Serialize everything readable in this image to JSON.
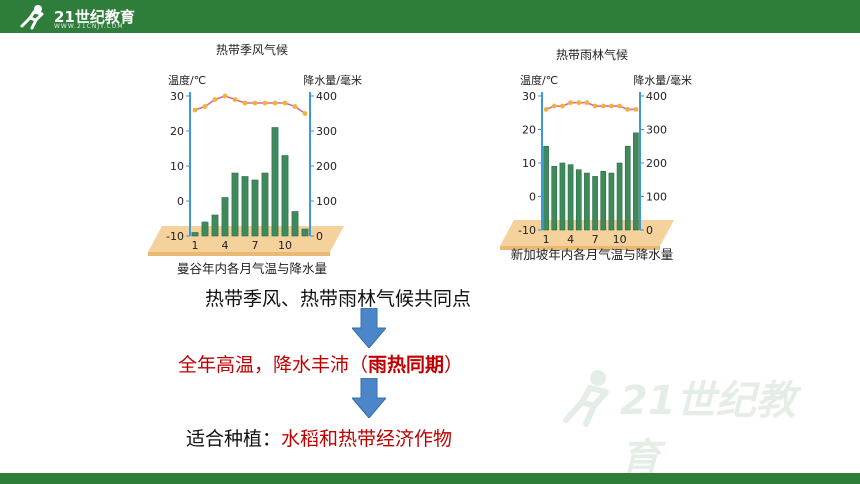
{
  "header": {
    "logo_text": "21世纪教育",
    "logo_sub": "WWW.21CNJY.COM"
  },
  "chart_data": [
    {
      "type": "bar",
      "title": "热带季风气候",
      "caption": "曼谷年内各月气温与降水量",
      "ylabel_left": "温度/℃",
      "ylabel_right": "降水量/毫米",
      "x_tick_labels": [
        "1",
        "4",
        "7",
        "10"
      ],
      "months": [
        1,
        2,
        3,
        4,
        5,
        6,
        7,
        8,
        9,
        10,
        11,
        12
      ],
      "precipitation": [
        10,
        40,
        60,
        110,
        180,
        170,
        160,
        180,
        310,
        230,
        70,
        20
      ],
      "temperature": [
        26,
        27,
        29,
        30,
        29,
        28,
        28,
        28,
        28,
        28,
        27,
        25
      ],
      "ylim_left": [
        -10,
        30
      ],
      "ylim_right": [
        0,
        400
      ],
      "yticks_left": [
        "30",
        "20",
        "10",
        "0",
        "-10"
      ],
      "yticks_right": [
        "400",
        "300",
        "200",
        "100",
        "0"
      ],
      "bar_color": "#3f8a5c",
      "line_color": "#d86a9a",
      "marker_color": "#f2b23a"
    },
    {
      "type": "bar",
      "title": "热带雨林气候",
      "caption": "新加坡年内各月气温与降水量",
      "ylabel_left": "温度/℃",
      "ylabel_right": "降水量/毫米",
      "x_tick_labels": [
        "1",
        "4",
        "7",
        "10"
      ],
      "months": [
        1,
        2,
        3,
        4,
        5,
        6,
        7,
        8,
        9,
        10,
        11,
        12
      ],
      "precipitation": [
        250,
        190,
        200,
        195,
        180,
        170,
        160,
        175,
        170,
        200,
        250,
        290
      ],
      "temperature": [
        26,
        27,
        27,
        28,
        28,
        28,
        27,
        27,
        27,
        27,
        26,
        26
      ],
      "ylim_left": [
        -10,
        30
      ],
      "ylim_right": [
        0,
        400
      ],
      "yticks_left": [
        "30",
        "20",
        "10",
        "0",
        "-10"
      ],
      "yticks_right": [
        "400",
        "300",
        "200",
        "100",
        "0"
      ],
      "bar_color": "#3f8a5c",
      "line_color": "#d86a9a",
      "marker_color": "#f2b23a"
    }
  ],
  "statements": {
    "common_point": "热带季风、热带雨林气候共同点",
    "feature_plain": "全年高温，降水丰沛（",
    "feature_bold": "雨热同期",
    "feature_end": "）",
    "crops_label": "适合种植：",
    "crops_value": "水稻和热带经济作物"
  },
  "colors": {
    "red": "#c00000",
    "green_bar": "#2f7d3a",
    "arrow": "#4a86c8"
  }
}
